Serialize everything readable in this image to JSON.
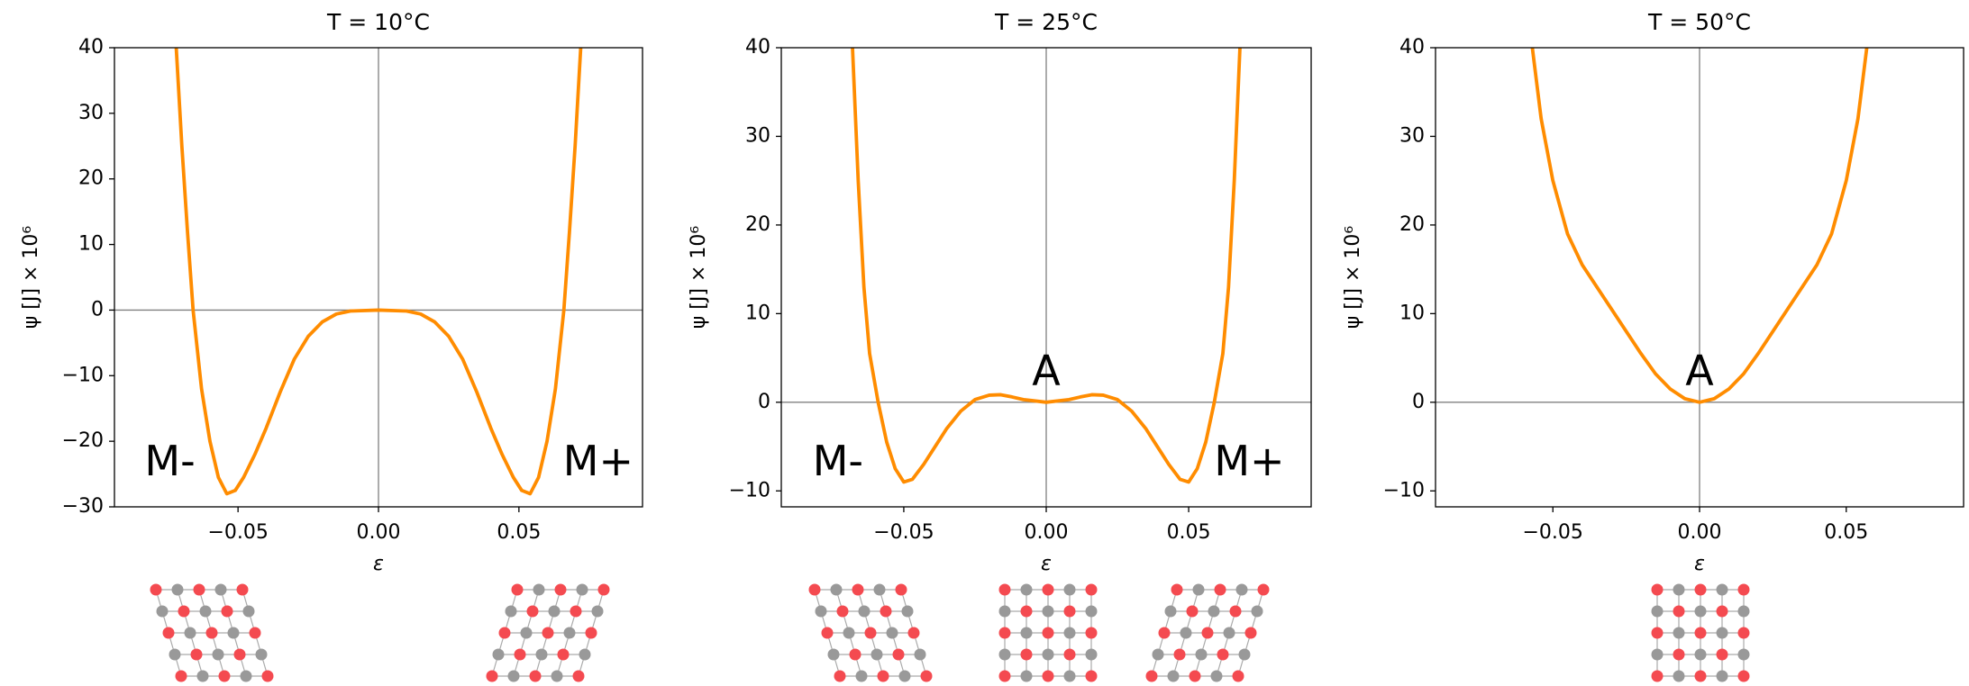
{
  "chart_data": [
    {
      "type": "line",
      "title": "T = 10°C",
      "x_label": "ε",
      "y_label": "ψ [J] × 10⁶",
      "xlim": [
        -0.094,
        0.094
      ],
      "ylim": [
        -30,
        40
      ],
      "xticks": [
        {
          "value": -0.05,
          "label": "−0.05"
        },
        {
          "value": 0,
          "label": "0.00"
        },
        0.05
      ],
      "yticks": [
        {
          "value": -30,
          "label": "−30"
        },
        {
          "value": -20,
          "label": "−20"
        },
        {
          "value": -10,
          "label": "−10"
        },
        0,
        10,
        20,
        30,
        40
      ],
      "annotations": [
        "M-",
        "M+"
      ],
      "series": [
        {
          "color": "#ff8c00",
          "x": [
            -0.072,
            -0.07,
            -0.068,
            -0.066,
            -0.063,
            -0.06,
            -0.057,
            -0.054,
            -0.051,
            -0.048,
            -0.044,
            -0.04,
            -0.035,
            -0.03,
            -0.025,
            -0.02,
            -0.015,
            -0.01,
            0,
            0.01,
            0.015,
            0.02,
            0.025,
            0.03,
            0.035,
            0.04,
            0.044,
            0.048,
            0.051,
            0.054,
            0.057,
            0.06,
            0.063,
            0.066,
            0.068,
            0.07,
            0.072
          ],
          "values": [
            40,
            25,
            12,
            0,
            -12,
            -20,
            -25.5,
            -28,
            -27.5,
            -25.5,
            -22,
            -18,
            -12.5,
            -7.5,
            -4,
            -1.8,
            -0.6,
            -0.15,
            0,
            -0.15,
            -0.6,
            -1.8,
            -4,
            -7.5,
            -12.5,
            -18,
            -22,
            -25.5,
            -27.5,
            -28,
            -25.5,
            -20,
            -12,
            0,
            12,
            25,
            40
          ]
        }
      ]
    },
    {
      "type": "line",
      "title": "T = 25°C",
      "x_label": "ε",
      "y_label": "ψ [J] × 10⁶",
      "xlim": [
        -0.093,
        0.093
      ],
      "ylim": [
        -11.8,
        40
      ],
      "xticks": [
        {
          "value": -0.05,
          "label": "−0.05"
        },
        {
          "value": 0,
          "label": "0.00"
        },
        0.05
      ],
      "yticks": [
        {
          "value": -10,
          "label": "−10"
        },
        0,
        10,
        20,
        30,
        40
      ],
      "annotations": [
        "M-",
        "A",
        "M+"
      ],
      "series": [
        {
          "color": "#ff8c00",
          "x": [
            -0.068,
            -0.066,
            -0.064,
            -0.062,
            -0.059,
            -0.056,
            -0.053,
            -0.05,
            -0.047,
            -0.043,
            -0.039,
            -0.035,
            -0.03,
            -0.025,
            -0.02,
            -0.016,
            -0.012,
            -0.008,
            0,
            0.008,
            0.012,
            0.016,
            0.02,
            0.025,
            0.03,
            0.035,
            0.039,
            0.043,
            0.047,
            0.05,
            0.053,
            0.056,
            0.059,
            0.062,
            0.064,
            0.066,
            0.068
          ],
          "values": [
            40,
            25,
            13,
            5.5,
            0,
            -4.5,
            -7.5,
            -9,
            -8.7,
            -7,
            -5,
            -3,
            -1,
            0.3,
            0.8,
            0.85,
            0.6,
            0.3,
            0,
            0.3,
            0.6,
            0.85,
            0.8,
            0.3,
            -1,
            -3,
            -5,
            -7,
            -8.7,
            -9,
            -7.5,
            -4.5,
            0,
            5.5,
            13,
            25,
            40
          ]
        }
      ]
    },
    {
      "type": "line",
      "title": "T = 50°C",
      "x_label": "ε",
      "y_label": "ψ [J] × 10⁶",
      "xlim": [
        -0.09,
        0.09
      ],
      "ylim": [
        -11.8,
        40
      ],
      "xticks": [
        {
          "value": -0.05,
          "label": "−0.05"
        },
        {
          "value": 0,
          "label": "0.00"
        },
        0.05
      ],
      "yticks": [
        {
          "value": -10,
          "label": "−10"
        },
        0,
        10,
        20,
        30,
        40
      ],
      "annotations": [
        "A"
      ],
      "series": [
        {
          "color": "#ff8c00",
          "x": [
            -0.057,
            -0.054,
            -0.05,
            -0.045,
            -0.04,
            -0.035,
            -0.03,
            -0.025,
            -0.02,
            -0.015,
            -0.01,
            -0.005,
            0,
            0.005,
            0.01,
            0.015,
            0.02,
            0.025,
            0.03,
            0.035,
            0.04,
            0.045,
            0.05,
            0.054,
            0.057
          ],
          "values": [
            40,
            32,
            25,
            19,
            15.5,
            13,
            10.5,
            8,
            5.5,
            3.2,
            1.5,
            0.4,
            0,
            0.4,
            1.5,
            3.2,
            5.5,
            8,
            10.5,
            13,
            15.5,
            19,
            25,
            32,
            40
          ]
        }
      ]
    }
  ]
}
